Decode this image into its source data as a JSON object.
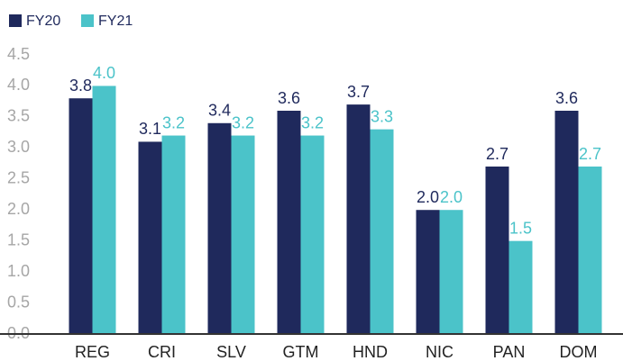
{
  "chart_data": {
    "type": "bar",
    "categories": [
      "REG",
      "CRI",
      "SLV",
      "GTM",
      "HND",
      "NIC",
      "PAN",
      "DOM"
    ],
    "series": [
      {
        "name": "FY20",
        "color": "#1f295c",
        "values": [
          3.8,
          3.1,
          3.4,
          3.6,
          3.7,
          2.0,
          2.7,
          3.6
        ],
        "value_labels": [
          "3.8",
          "3.1",
          "3.4",
          "3.6",
          "3.7",
          "2.0",
          "2.7",
          "3.6"
        ]
      },
      {
        "name": "FY21",
        "color": "#4bc3c9",
        "values": [
          4.0,
          3.2,
          3.2,
          3.2,
          3.3,
          2.0,
          1.5,
          2.7
        ],
        "value_labels": [
          "4.0",
          "3.2",
          "3.2",
          "3.2",
          "3.3",
          "2.0",
          "1.5",
          "2.7"
        ]
      }
    ],
    "ylim": [
      0,
      4.5
    ],
    "yticks": [
      {
        "value": 0,
        "label": "0.0"
      },
      0.5,
      {
        "value": 1,
        "label": "1.0"
      },
      1.5,
      {
        "value": 2,
        "label": "2.0"
      },
      2.5,
      {
        "value": 3,
        "label": "3.0"
      },
      3.5,
      {
        "value": 4,
        "label": "4.0"
      },
      4.5
    ],
    "grid": false,
    "legend": "top-left"
  }
}
